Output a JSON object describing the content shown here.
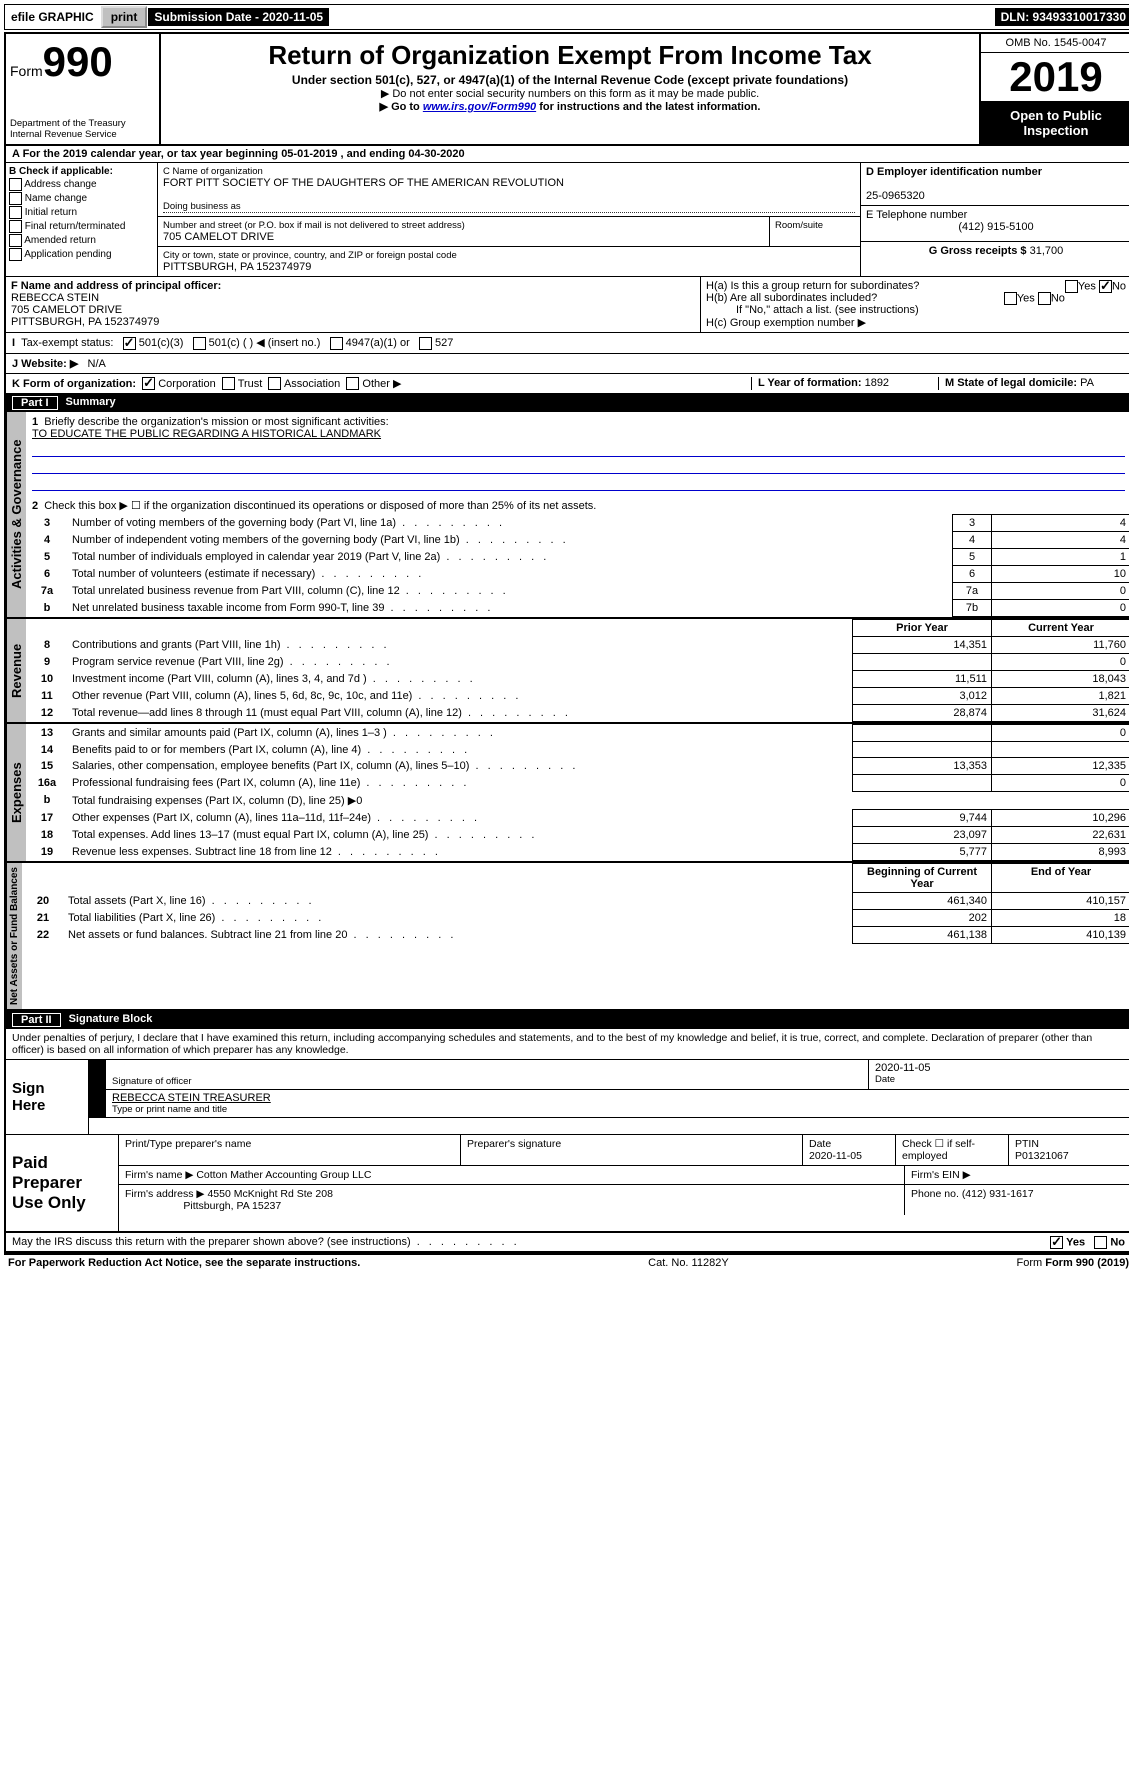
{
  "top_bar": {
    "efile": "efile GRAPHIC",
    "print": "print",
    "submission_label": "Submission Date - 2020-11-05",
    "dln": "DLN: 93493310017330"
  },
  "header": {
    "form_prefix": "Form",
    "form_number": "990",
    "dept": "Department of the Treasury\nInternal Revenue Service",
    "title": "Return of Organization Exempt From Income Tax",
    "subtitle": "Under section 501(c), 527, or 4947(a)(1) of the Internal Revenue Code (except private foundations)",
    "note1": "▶ Do not enter social security numbers on this form as it may be made public.",
    "note2_prefix": "▶ Go to ",
    "note2_link": "www.irs.gov/Form990",
    "note2_suffix": " for instructions and the latest information.",
    "omb": "OMB No. 1545-0047",
    "year": "2019",
    "open": "Open to Public Inspection"
  },
  "row_a": {
    "text": "A For the 2019 calendar year, or tax year beginning 05-01-2019    , and ending 04-30-2020"
  },
  "section_b": {
    "label": "B Check if applicable:",
    "items": [
      "Address change",
      "Name change",
      "Initial return",
      "Final return/terminated",
      "Amended return",
      "Application pending"
    ]
  },
  "section_c": {
    "name_label": "C Name of organization",
    "name": "FORT PITT SOCIETY OF THE DAUGHTERS OF THE AMERICAN REVOLUTION",
    "dba_label": "Doing business as",
    "addr_label": "Number and street (or P.O. box if mail is not delivered to street address)",
    "addr": "705 CAMELOT DRIVE",
    "room_label": "Room/suite",
    "city_label": "City or town, state or province, country, and ZIP or foreign postal code",
    "city": "PITTSBURGH, PA  152374979"
  },
  "section_d": {
    "label": "D Employer identification number",
    "value": "25-0965320"
  },
  "section_e": {
    "label": "E Telephone number",
    "value": "(412) 915-5100"
  },
  "section_g": {
    "label": "G Gross receipts $",
    "value": "31,700"
  },
  "section_f": {
    "label": "F Name and address of principal officer:",
    "name": "REBECCA STEIN",
    "addr1": "705 CAMELOT DRIVE",
    "addr2": "PITTSBURGH, PA  152374979"
  },
  "section_h": {
    "ha": "H(a)  Is this a group return for subordinates?",
    "hb": "H(b)  Are all subordinates included?",
    "hb_note": "If \"No,\" attach a list. (see instructions)",
    "hc": "H(c)  Group exemption number ▶",
    "yes": "Yes",
    "no": "No"
  },
  "row_i": {
    "label": "Tax-exempt status:",
    "opt1": "501(c)(3)",
    "opt2": "501(c) (   ) ◀ (insert no.)",
    "opt3": "4947(a)(1) or",
    "opt4": "527"
  },
  "row_j": {
    "label": "J  Website: ▶",
    "value": "N/A"
  },
  "row_k": {
    "label": "K Form of organization:",
    "opts": [
      "Corporation",
      "Trust",
      "Association",
      "Other ▶"
    ],
    "l_label": "L Year of formation:",
    "l_val": "1892",
    "m_label": "M State of legal domicile:",
    "m_val": "PA"
  },
  "part1": {
    "label": "Part I",
    "title": "Summary"
  },
  "summary": {
    "line1_label": "Briefly describe the organization's mission or most significant activities:",
    "line1_val": "TO EDUCATE THE PUBLIC REGARDING A HISTORICAL LANDMARK",
    "line2": "Check this box ▶ ☐  if the organization discontinued its operations or disposed of more than 25% of its net assets.",
    "rows_gov": [
      {
        "n": "3",
        "label": "Number of voting members of the governing body (Part VI, line 1a)",
        "ln": "3",
        "val": "4"
      },
      {
        "n": "4",
        "label": "Number of independent voting members of the governing body (Part VI, line 1b)",
        "ln": "4",
        "val": "4"
      },
      {
        "n": "5",
        "label": "Total number of individuals employed in calendar year 2019 (Part V, line 2a)",
        "ln": "5",
        "val": "1"
      },
      {
        "n": "6",
        "label": "Total number of volunteers (estimate if necessary)",
        "ln": "6",
        "val": "10"
      },
      {
        "n": "7a",
        "label": "Total unrelated business revenue from Part VIII, column (C), line 12",
        "ln": "7a",
        "val": "0"
      },
      {
        "n": "b",
        "label": "Net unrelated business taxable income from Form 990-T, line 39",
        "ln": "7b",
        "val": "0"
      }
    ],
    "col_prior": "Prior Year",
    "col_current": "Current Year",
    "rows_rev": [
      {
        "n": "8",
        "label": "Contributions and grants (Part VIII, line 1h)",
        "p": "14,351",
        "c": "11,760"
      },
      {
        "n": "9",
        "label": "Program service revenue (Part VIII, line 2g)",
        "p": "",
        "c": "0"
      },
      {
        "n": "10",
        "label": "Investment income (Part VIII, column (A), lines 3, 4, and 7d )",
        "p": "11,511",
        "c": "18,043"
      },
      {
        "n": "11",
        "label": "Other revenue (Part VIII, column (A), lines 5, 6d, 8c, 9c, 10c, and 11e)",
        "p": "3,012",
        "c": "1,821"
      },
      {
        "n": "12",
        "label": "Total revenue—add lines 8 through 11 (must equal Part VIII, column (A), line 12)",
        "p": "28,874",
        "c": "31,624"
      }
    ],
    "rows_exp": [
      {
        "n": "13",
        "label": "Grants and similar amounts paid (Part IX, column (A), lines 1–3 )",
        "p": "",
        "c": "0"
      },
      {
        "n": "14",
        "label": "Benefits paid to or for members (Part IX, column (A), line 4)",
        "p": "",
        "c": ""
      },
      {
        "n": "15",
        "label": "Salaries, other compensation, employee benefits (Part IX, column (A), lines 5–10)",
        "p": "13,353",
        "c": "12,335"
      },
      {
        "n": "16a",
        "label": "Professional fundraising fees (Part IX, column (A), line 11e)",
        "p": "",
        "c": "0"
      },
      {
        "n": "b",
        "label": "Total fundraising expenses (Part IX, column (D), line 25) ▶0",
        "p": null,
        "c": null
      },
      {
        "n": "17",
        "label": "Other expenses (Part IX, column (A), lines 11a–11d, 11f–24e)",
        "p": "9,744",
        "c": "10,296"
      },
      {
        "n": "18",
        "label": "Total expenses. Add lines 13–17 (must equal Part IX, column (A), line 25)",
        "p": "23,097",
        "c": "22,631"
      },
      {
        "n": "19",
        "label": "Revenue less expenses. Subtract line 18 from line 12",
        "p": "5,777",
        "c": "8,993"
      }
    ],
    "col_begin": "Beginning of Current Year",
    "col_end": "End of Year",
    "rows_net": [
      {
        "n": "20",
        "label": "Total assets (Part X, line 16)",
        "p": "461,340",
        "c": "410,157"
      },
      {
        "n": "21",
        "label": "Total liabilities (Part X, line 26)",
        "p": "202",
        "c": "18"
      },
      {
        "n": "22",
        "label": "Net assets or fund balances. Subtract line 21 from line 20",
        "p": "461,138",
        "c": "410,139"
      }
    ]
  },
  "side_labels": {
    "gov": "Activities & Governance",
    "rev": "Revenue",
    "exp": "Expenses",
    "net": "Net Assets or Fund Balances"
  },
  "part2": {
    "label": "Part II",
    "title": "Signature Block",
    "declaration": "Under penalties of perjury, I declare that I have examined this return, including accompanying schedules and statements, and to the best of my knowledge and belief, it is true, correct, and complete. Declaration of preparer (other than officer) is based on all information of which preparer has any knowledge."
  },
  "sign": {
    "label": "Sign Here",
    "sig_label": "Signature of officer",
    "date_label": "Date",
    "date": "2020-11-05",
    "name": "REBECCA STEIN  TREASURER",
    "name_label": "Type or print name and title"
  },
  "paid": {
    "label": "Paid Preparer Use Only",
    "h1": "Print/Type preparer's name",
    "h2": "Preparer's signature",
    "h3": "Date",
    "date": "2020-11-05",
    "h4": "Check ☐ if self-employed",
    "h5": "PTIN",
    "ptin": "P01321067",
    "firm_name_label": "Firm's name      ▶",
    "firm_name": "Cotton Mather Accounting Group LLC",
    "firm_ein_label": "Firm's EIN ▶",
    "firm_addr_label": "Firm's address ▶",
    "firm_addr1": "4550 McKnight Rd Ste 208",
    "firm_addr2": "Pittsburgh, PA  15237",
    "phone_label": "Phone no.",
    "phone": "(412) 931-1617"
  },
  "footer": {
    "discuss": "May the IRS discuss this return with the preparer shown above? (see instructions)",
    "paperwork": "For Paperwork Reduction Act Notice, see the separate instructions.",
    "cat": "Cat. No. 11282Y",
    "form": "Form 990 (2019)",
    "yes": "Yes",
    "no": "No"
  }
}
